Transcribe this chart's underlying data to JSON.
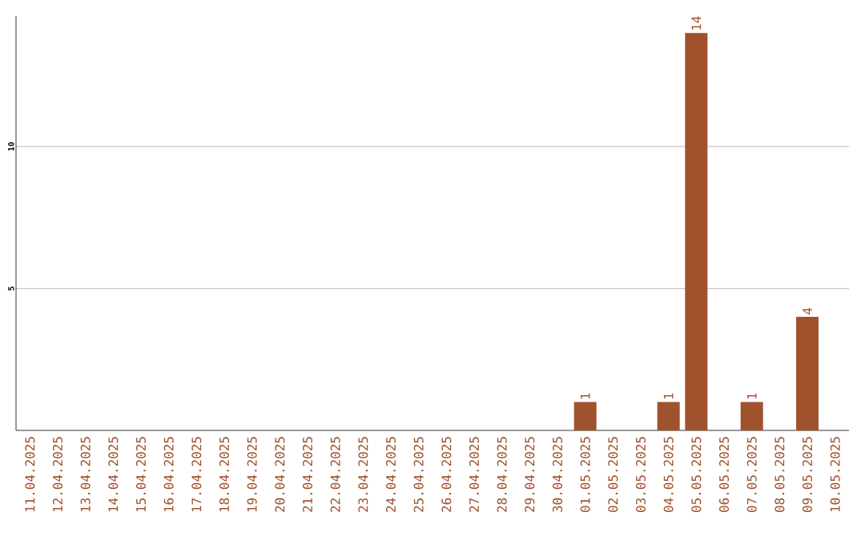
{
  "chart_data": {
    "type": "bar",
    "categories": [
      "11.04.2025",
      "12.04.2025",
      "13.04.2025",
      "14.04.2025",
      "15.04.2025",
      "16.04.2025",
      "17.04.2025",
      "18.04.2025",
      "19.04.2025",
      "20.04.2025",
      "21.04.2025",
      "22.04.2025",
      "23.04.2025",
      "24.04.2025",
      "25.04.2025",
      "26.04.2025",
      "27.04.2025",
      "28.04.2025",
      "29.04.2025",
      "30.04.2025",
      "01.05.2025",
      "02.05.2025",
      "03.05.2025",
      "04.05.2025",
      "05.05.2025",
      "06.05.2025",
      "07.05.2025",
      "08.05.2025",
      "09.05.2025",
      "10.05.2025"
    ],
    "values": [
      0,
      0,
      0,
      0,
      0,
      0,
      0,
      0,
      0,
      0,
      0,
      0,
      0,
      0,
      0,
      0,
      0,
      0,
      0,
      0,
      1,
      0,
      0,
      1,
      14,
      0,
      1,
      0,
      4,
      0
    ],
    "value_labels": [
      null,
      null,
      null,
      null,
      null,
      null,
      null,
      null,
      null,
      null,
      null,
      null,
      null,
      null,
      null,
      null,
      null,
      null,
      null,
      null,
      "1",
      null,
      null,
      "1",
      "14",
      null,
      "1",
      null,
      "4",
      null
    ],
    "color": "#a0522d",
    "ylim": [
      0,
      14.6
    ],
    "yticks": [
      5,
      10
    ],
    "grid": "y"
  }
}
